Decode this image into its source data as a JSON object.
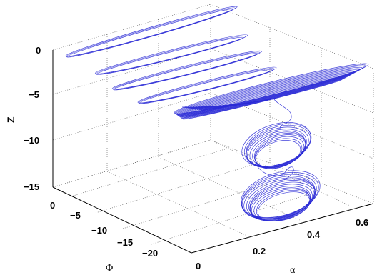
{
  "chart_data": {
    "type": "line",
    "projection": "3d",
    "xlabel": "α",
    "ylabel": "Φ",
    "zlabel": "Z",
    "x_ticks": [
      "0",
      "0.2",
      "0.4",
      "0.6"
    ],
    "y_ticks": [
      "0",
      "−5",
      "−10",
      "−15",
      "−20"
    ],
    "z_ticks": [
      "0",
      "−5",
      "−10",
      "−15"
    ],
    "xlim": [
      0,
      0.65
    ],
    "ylim": [
      -24,
      1
    ],
    "zlim": [
      -15.5,
      1.5
    ],
    "grid": true,
    "color": "#2b2bd6",
    "series": [
      {
        "segment": "spiral-trajectory",
        "points": [
          [
            0.05,
            -1,
            0
          ],
          [
            0.45,
            -1,
            0
          ],
          [
            0.6,
            -2,
            0
          ],
          [
            0.2,
            -2.6,
            0
          ],
          [
            0.06,
            -2.4,
            0
          ],
          [
            0.12,
            -4,
            -1
          ],
          [
            0.5,
            -4,
            -1
          ],
          [
            0.58,
            -5,
            -1
          ],
          [
            0.25,
            -5.4,
            -1
          ],
          [
            0.12,
            -5,
            -1
          ],
          [
            0.15,
            -7,
            -2.4
          ],
          [
            0.52,
            -7,
            -2.4
          ],
          [
            0.58,
            -8,
            -2.4
          ],
          [
            0.28,
            -8.4,
            -2.4
          ],
          [
            0.15,
            -8,
            -2.4
          ],
          [
            0.18,
            -10,
            -3.8
          ],
          [
            0.54,
            -10,
            -3.8
          ],
          [
            0.6,
            -11,
            -3.8
          ],
          [
            0.3,
            -11.4,
            -3.8
          ],
          [
            0.18,
            -11,
            -3.8
          ],
          [
            0.2,
            -14,
            -5.2
          ],
          [
            0.58,
            -14,
            -5.2
          ],
          [
            0.62,
            -15,
            -5.4
          ],
          [
            0.32,
            -15.4,
            -5.6
          ],
          [
            0.22,
            -15,
            -5.8
          ],
          [
            0.3,
            -18,
            -7.0
          ],
          [
            0.32,
            -18,
            -8.5
          ],
          [
            0.4,
            -19,
            -10.0
          ],
          [
            0.3,
            -20,
            -11.5
          ],
          [
            0.36,
            -20,
            -13.0
          ],
          [
            0.4,
            -19.5,
            -14.5
          ]
        ]
      }
    ]
  }
}
